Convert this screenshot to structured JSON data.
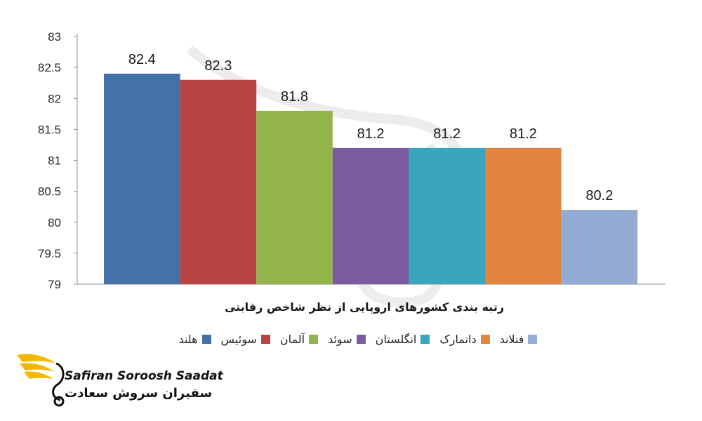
{
  "chart_data": {
    "type": "bar",
    "categories": [
      "هلند",
      "سوئیس",
      "آلمان",
      "سوئد",
      "انگلستان",
      "دانمارک",
      "فنلاند"
    ],
    "values": [
      82.4,
      82.3,
      81.8,
      81.2,
      81.2,
      81.2,
      80.2
    ],
    "data_labels": [
      "82.4",
      "82.3",
      "81.8",
      "81.2",
      "81.2",
      "81.2",
      "80.2"
    ],
    "colors": [
      "#4472a8",
      "#b84444",
      "#93b44a",
      "#7b5b9d",
      "#3aa6bd",
      "#e0843e",
      "#94acd4"
    ],
    "xlabel": "رتبه بندی کشورهای اروپایی از نظر شاخص رقابتی",
    "ylabel": "",
    "ylim": [
      79,
      83
    ],
    "yticks": [
      "79",
      "79.5",
      "80",
      "80.5",
      "81",
      "81.5",
      "82",
      "82.5",
      "83"
    ],
    "grid": false,
    "legend_position": "bottom"
  },
  "logo": {
    "text_en": "Safiran Soroosh Saadat",
    "text_fa": "سفیران سروش سعادت"
  }
}
